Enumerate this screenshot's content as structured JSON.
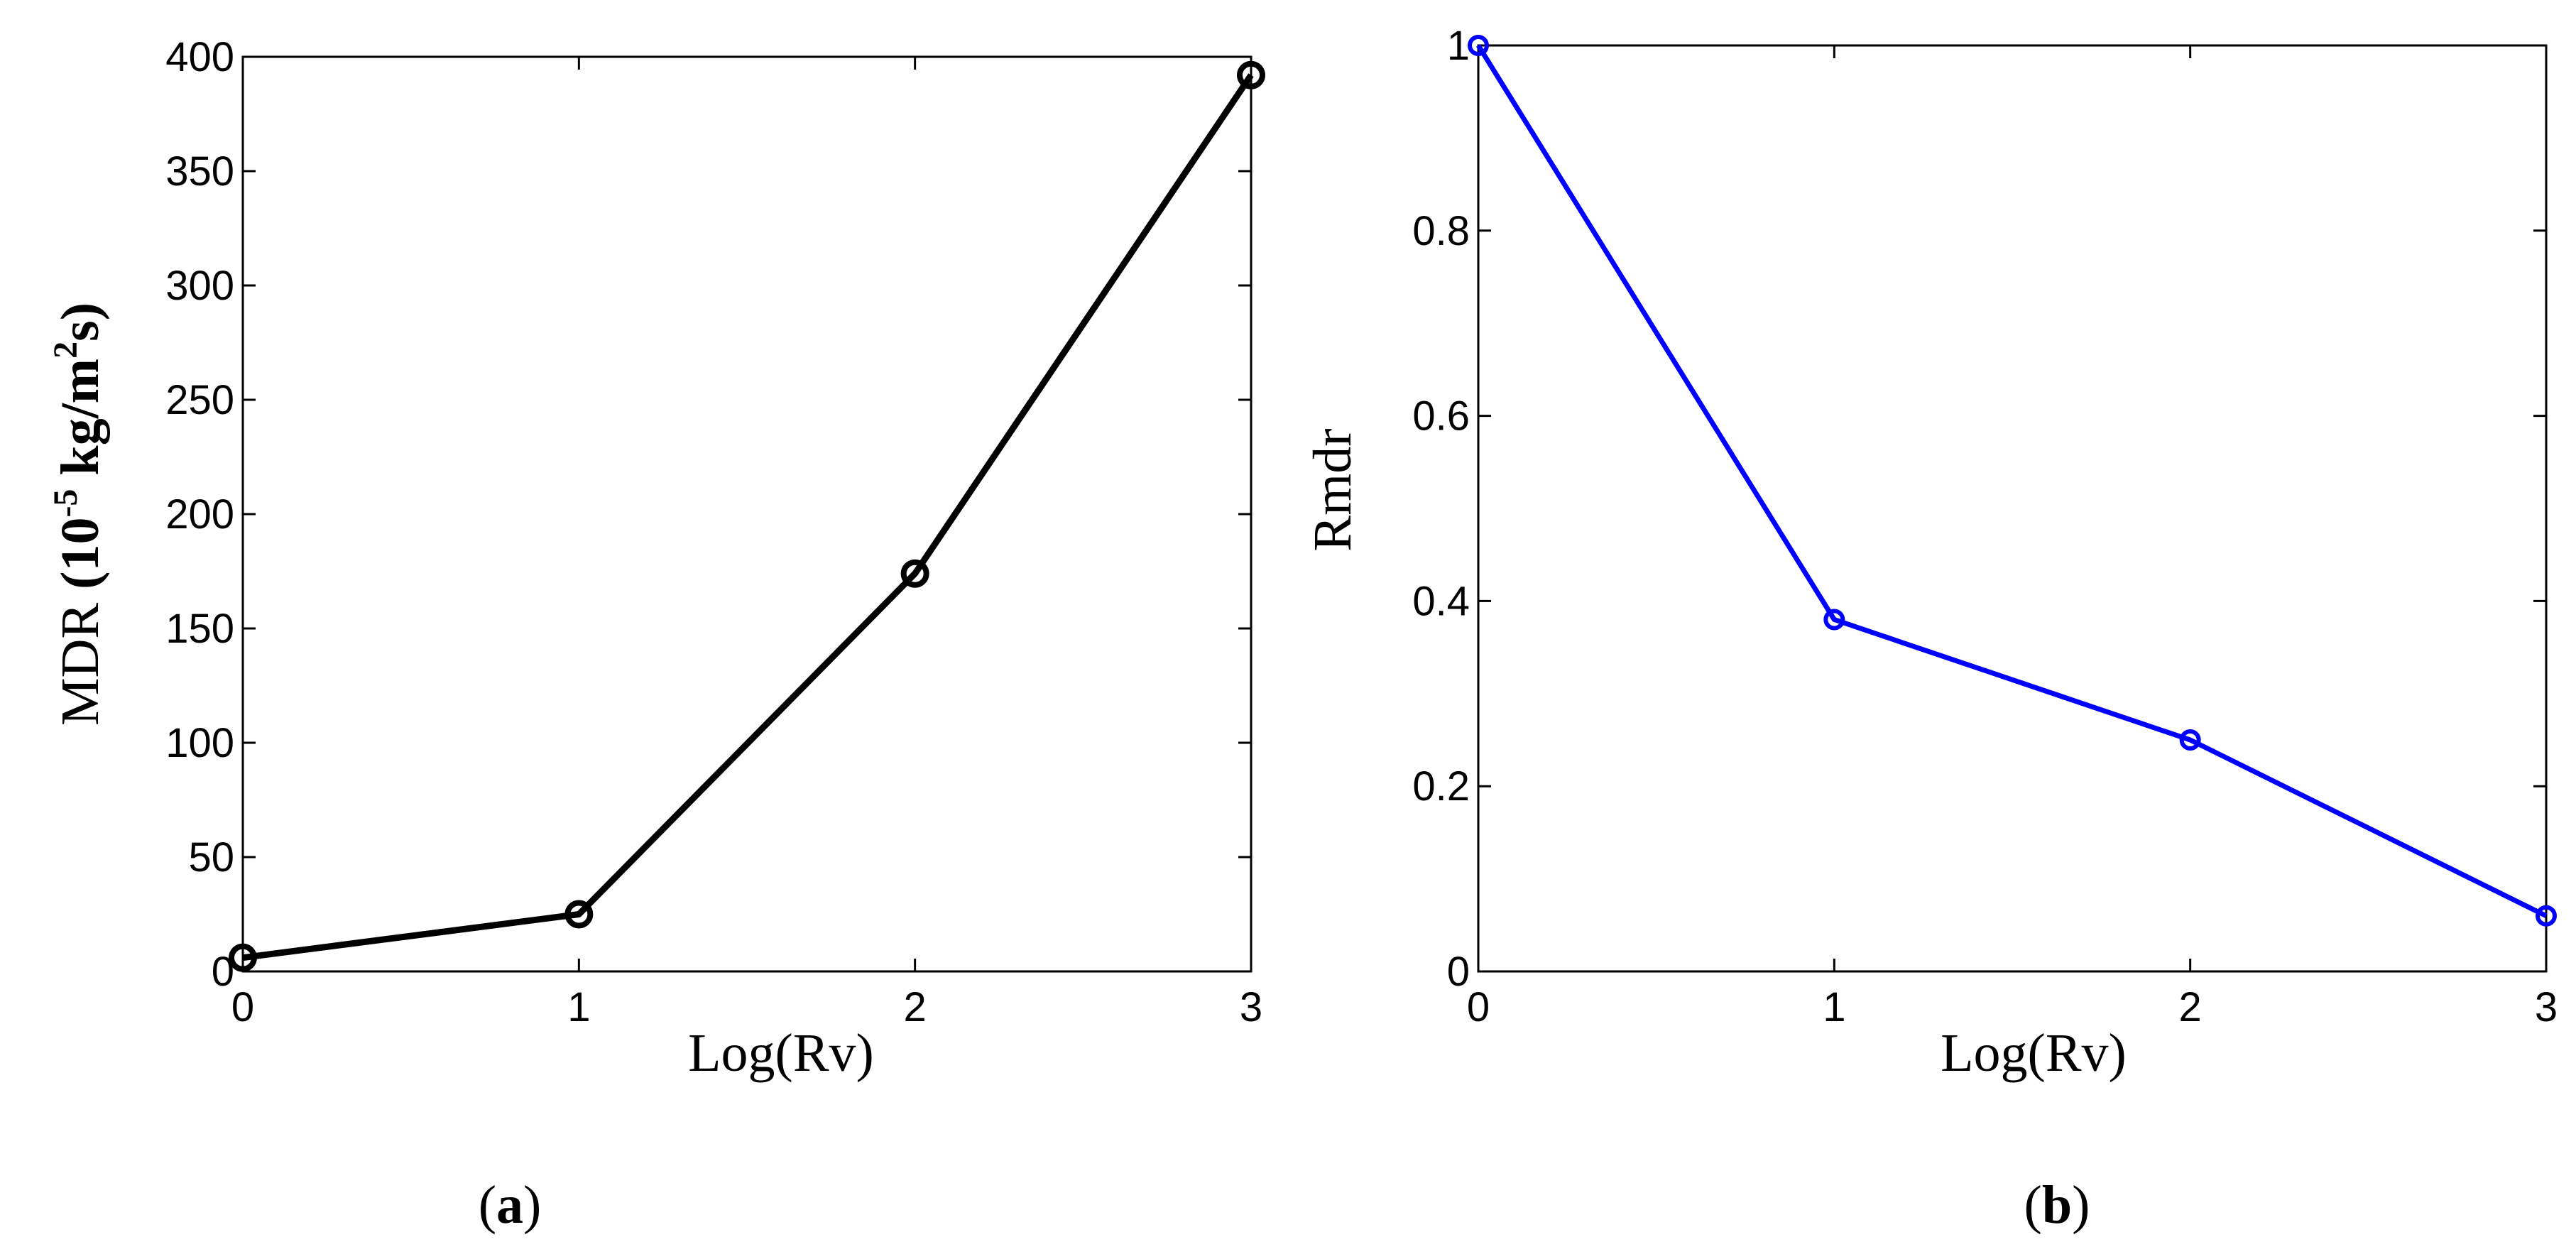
{
  "chart_data": [
    {
      "type": "line",
      "panel_label": {
        "open": "(",
        "letter": "a",
        "close": ")"
      },
      "xlabel": "Log(Rv)",
      "ylabel": {
        "prefix": "MDR",
        "paren_open": " (10",
        "exp1": "-5",
        "unit_mid": " kg/m",
        "exp2": "2",
        "unit_end": "s)"
      },
      "xlim": [
        0,
        3
      ],
      "ylim": [
        0,
        400
      ],
      "xticks": [
        "0",
        "1",
        "2",
        "3"
      ],
      "yticks": [
        "0",
        "50",
        "100",
        "150",
        "200",
        "250",
        "300",
        "350",
        "400"
      ],
      "grid": false,
      "series": [
        {
          "x": [
            0,
            1,
            2,
            3
          ],
          "y": [
            6,
            25,
            174,
            392
          ],
          "color": "#000000",
          "marker": "circle"
        }
      ]
    },
    {
      "type": "line",
      "panel_label": {
        "open": "(",
        "letter": "b",
        "close": ")"
      },
      "xlabel": "Log(Rv)",
      "ylabel": "Rmdr",
      "xlim": [
        0,
        3
      ],
      "ylim": [
        0,
        1
      ],
      "xticks": [
        "0",
        "1",
        "2",
        "3"
      ],
      "yticks": [
        "0",
        "0.2",
        "0.4",
        "0.6",
        "0.8",
        "1"
      ],
      "grid": false,
      "series": [
        {
          "x": [
            0,
            1,
            2,
            3
          ],
          "y": [
            1.0,
            0.38,
            0.25,
            0.06
          ],
          "color": "#0000ff",
          "marker": "circle"
        }
      ]
    }
  ]
}
